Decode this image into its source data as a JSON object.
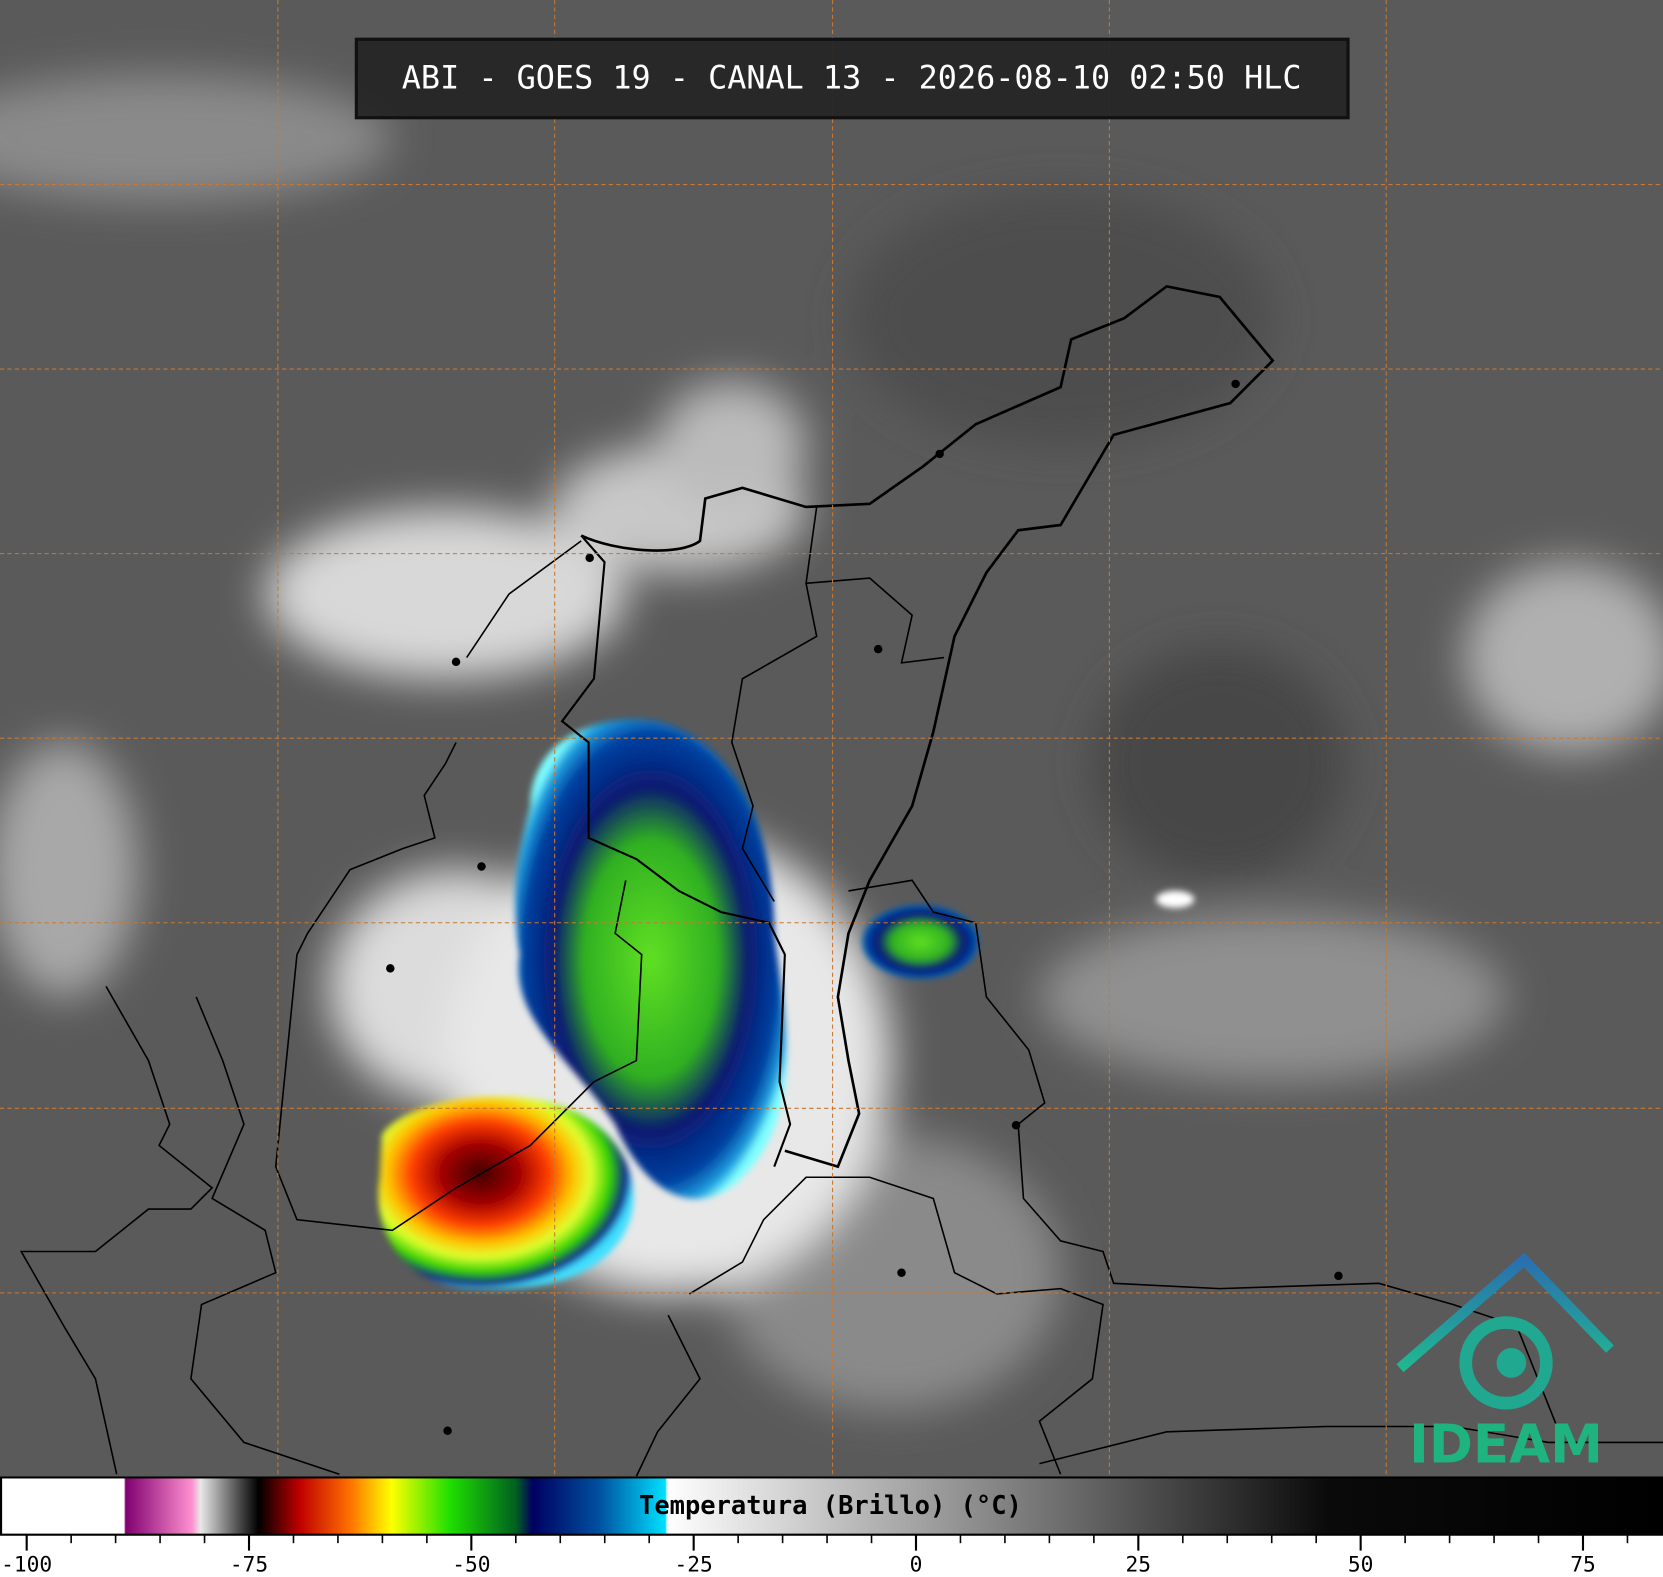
{
  "header": {
    "title": "ABI - GOES 19 - CANAL 13 - 2026-08-10 02:50 HLC"
  },
  "colorbar": {
    "label": "Temperatura (Brillo) (°C)",
    "xlim": [
      -103,
      84
    ],
    "ticks": [
      -100,
      -75,
      -50,
      -25,
      0,
      25,
      50,
      75
    ]
  },
  "logo": {
    "text": "IDEAM"
  }
}
